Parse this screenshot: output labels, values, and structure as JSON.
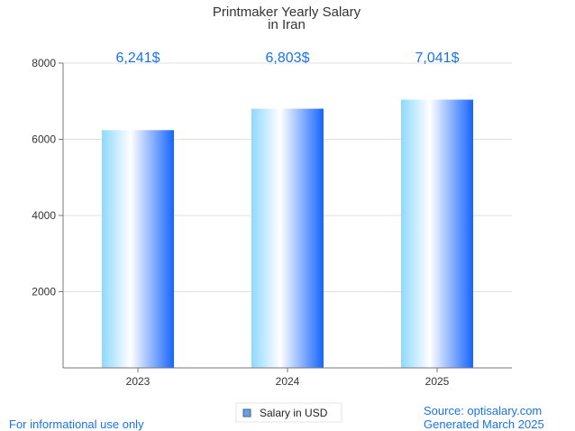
{
  "chart_data": {
    "type": "bar",
    "title": "Printmaker Yearly Salary",
    "subtitle": "in Iran",
    "categories": [
      "2023",
      "2024",
      "2025"
    ],
    "series": [
      {
        "name": "Salary in USD",
        "values": [
          6241,
          6803,
          7041
        ]
      }
    ],
    "data_labels": [
      "6,241$",
      "6,803$",
      "7,041$"
    ],
    "y_ticks": [
      "2000",
      "4000",
      "6000",
      "8000"
    ],
    "ylim": [
      0,
      8000
    ],
    "xlabel": "",
    "ylabel": "",
    "grid": true,
    "legend_position": "bottom-center"
  },
  "footer": {
    "disclaimer": "For informational use only",
    "source": "Source: optisalary.com",
    "generated": "Generated March 2025"
  },
  "colors": {
    "bar_light": "#b3e5fc",
    "bar_white": "#ffffff",
    "bar_dark": "#1565ff",
    "accent": "#1a73e8",
    "grid": "#e0e0e0",
    "axis": "#777777"
  }
}
